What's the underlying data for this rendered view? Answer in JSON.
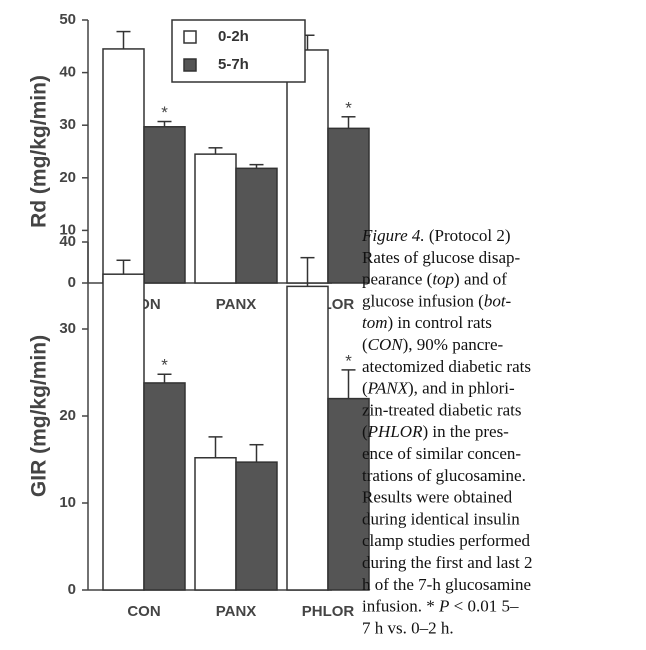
{
  "chart_data": [
    {
      "type": "bar",
      "y_label": "Rd (mg/kg/min)",
      "categories": [
        "CON",
        "PANX",
        "PHLOR"
      ],
      "ylim": [
        0,
        50
      ],
      "yticks": [
        0,
        10,
        20,
        30,
        40,
        50
      ],
      "legend": true,
      "series": [
        {
          "name": "0-2h",
          "color": "#ffffff",
          "values": [
            44.5,
            24.5,
            44.3
          ],
          "errors": [
            3.3,
            1.2,
            2.8
          ]
        },
        {
          "name": "5-7h",
          "color": "#555555",
          "values": [
            29.7,
            21.8,
            29.4
          ],
          "errors": [
            1.0,
            0.7,
            2.2
          ],
          "annotations": [
            "*",
            null,
            "*"
          ]
        }
      ]
    },
    {
      "type": "bar",
      "y_label": "GIR (mg/kg/min)",
      "categories": [
        "CON",
        "PANX",
        "PHLOR"
      ],
      "ylim": [
        0,
        40
      ],
      "yticks": [
        0,
        10,
        20,
        30,
        40
      ],
      "legend": false,
      "series": [
        {
          "color": "#ffffff",
          "values": [
            36.3,
            15.2,
            34.9
          ],
          "errors": [
            1.6,
            2.4,
            3.3
          ]
        },
        {
          "color": "#555555",
          "values": [
            23.8,
            14.7,
            22.0
          ],
          "errors": [
            1.0,
            2.0,
            3.3
          ],
          "annotations": [
            "*",
            null,
            "*"
          ]
        }
      ]
    }
  ],
  "caption": [
    [
      {
        "text": "Figure 4.",
        "italic": true
      },
      {
        "text": " (Protocol 2)"
      }
    ],
    [
      {
        "text": "Rates of glucose disap-"
      }
    ],
    [
      {
        "text": "pearance ("
      },
      {
        "text": "top",
        "italic": true
      },
      {
        "text": ") and of"
      }
    ],
    [
      {
        "text": "glucose infusion ("
      },
      {
        "text": "bot-",
        "italic": true
      }
    ],
    [
      {
        "text": "tom",
        "italic": true
      },
      {
        "text": ") in control rats"
      }
    ],
    [
      {
        "text": "("
      },
      {
        "text": "CON",
        "italic": true
      },
      {
        "text": "), 90% pancre-"
      }
    ],
    [
      {
        "text": "atectomized diabetic rats"
      }
    ],
    [
      {
        "text": "("
      },
      {
        "text": "PANX",
        "italic": true
      },
      {
        "text": "), and in phlori-"
      }
    ],
    [
      {
        "text": "zin-treated diabetic rats"
      }
    ],
    [
      {
        "text": "("
      },
      {
        "text": "PHLOR",
        "italic": true
      },
      {
        "text": ") in the pres-"
      }
    ],
    [
      {
        "text": "ence of similar concen-"
      }
    ],
    [
      {
        "text": "trations of glucosamine."
      }
    ],
    [
      {
        "text": "Results were obtained"
      }
    ],
    [
      {
        "text": "during identical insulin"
      }
    ],
    [
      {
        "text": "clamp studies performed"
      }
    ],
    [
      {
        "text": "during the first and last 2"
      }
    ],
    [
      {
        "text": "h of the 7-h glucosamine"
      }
    ],
    [
      {
        "text": "infusion.  * "
      },
      {
        "text": "P",
        "italic": true
      },
      {
        "text": " < 0.01 5–"
      }
    ],
    [
      {
        "text": "7 h vs. 0–2 h."
      }
    ]
  ]
}
